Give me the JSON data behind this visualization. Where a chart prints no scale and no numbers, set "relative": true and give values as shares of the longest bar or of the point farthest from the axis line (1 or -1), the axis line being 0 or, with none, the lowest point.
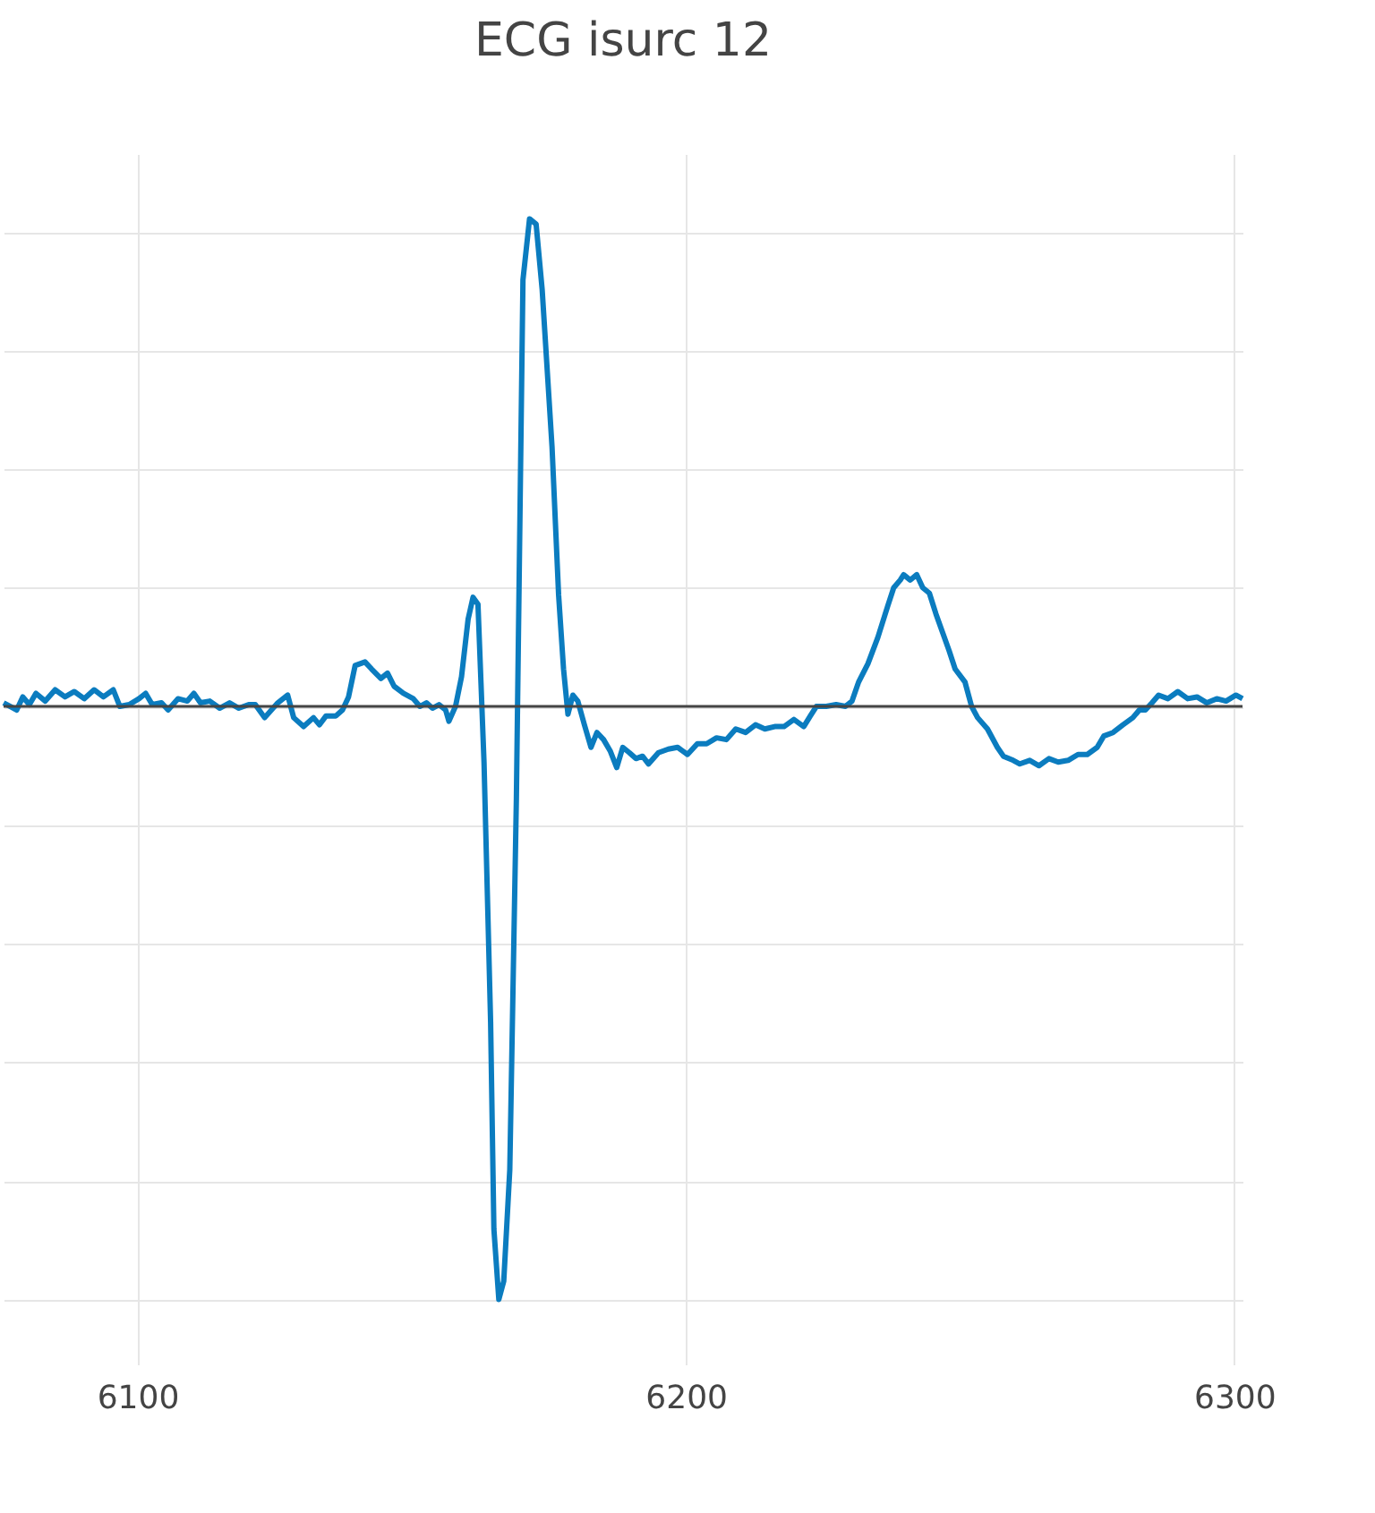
{
  "chart_data": {
    "type": "line",
    "title": "ECG isurc 12",
    "relative": true,
    "grid": true,
    "legend": false,
    "marker": "none",
    "line_style": "solid",
    "xlim": [
      6075.6,
      6301.5
    ],
    "xticks": [
      6100,
      6200,
      6300
    ],
    "series": [
      {
        "color": "#0b7cbf",
        "x": [
          6075.6,
          6078.0,
          6079.1,
          6080.3,
          6081.5,
          6083.2,
          6085.0,
          6086.8,
          6088.5,
          6090.3,
          6092.1,
          6093.8,
          6095.6,
          6096.8,
          6098.5,
          6100.3,
          6101.5,
          6102.7,
          6104.4,
          6105.6,
          6107.4,
          6109.1,
          6110.3,
          6111.5,
          6113.2,
          6115.0,
          6116.8,
          6118.5,
          6120.3,
          6121.5,
          6123.2,
          6125.6,
          6127.4,
          6128.5,
          6130.3,
          6132.1,
          6133.2,
          6134.4,
          6136.2,
          6137.4,
          6138.5,
          6139.7,
          6141.5,
          6142.7,
          6144.4,
          6145.6,
          6146.8,
          6148.5,
          6150.3,
          6151.5,
          6152.7,
          6153.8,
          6155.0,
          6156.2,
          6156.8,
          6158.0,
          6159.1,
          6160.3,
          6161.2,
          6162.1,
          6163.2,
          6164.4,
          6165.0,
          6165.9,
          6166.8,
          6167.9,
          6169.1,
          6170.3,
          6171.5,
          6172.7,
          6173.8,
          6175.6,
          6176.8,
          6177.7,
          6178.5,
          6179.4,
          6180.3,
          6181.5,
          6182.7,
          6183.8,
          6185.0,
          6186.2,
          6187.4,
          6188.5,
          6189.7,
          6190.9,
          6192.1,
          6193.2,
          6195.0,
          6196.8,
          6198.5,
          6200.3,
          6202.1,
          6203.8,
          6205.6,
          6207.4,
          6209.1,
          6210.9,
          6212.7,
          6214.4,
          6216.2,
          6217.9,
          6219.7,
          6221.5,
          6222.7,
          6223.8,
          6225.6,
          6227.4,
          6229.1,
          6230.3,
          6231.5,
          6233.2,
          6235.0,
          6236.8,
          6237.9,
          6239.1,
          6239.7,
          6240.9,
          6242.1,
          6243.2,
          6244.4,
          6245.6,
          6246.8,
          6248.0,
          6249.1,
          6250.9,
          6252.1,
          6253.2,
          6255.0,
          6256.8,
          6257.9,
          6259.7,
          6260.9,
          6262.7,
          6264.4,
          6266.2,
          6267.9,
          6269.7,
          6271.5,
          6273.2,
          6275.0,
          6276.2,
          6277.9,
          6279.7,
          6281.5,
          6282.7,
          6283.8,
          6285.0,
          6286.2,
          6287.9,
          6289.7,
          6291.5,
          6293.2,
          6295.0,
          6296.8,
          6298.5,
          6300.3,
          6301.5
        ],
        "values": [
          0.006,
          -0.006,
          0.016,
          0.003,
          0.022,
          0.009,
          0.028,
          0.016,
          0.025,
          0.013,
          0.028,
          0.016,
          0.028,
          0.0,
          0.003,
          0.013,
          0.022,
          0.003,
          0.006,
          -0.006,
          0.013,
          0.009,
          0.022,
          0.006,
          0.009,
          -0.003,
          0.006,
          -0.003,
          0.003,
          0.003,
          -0.019,
          0.006,
          0.019,
          -0.019,
          -0.034,
          -0.019,
          -0.031,
          -0.016,
          -0.016,
          -0.006,
          0.016,
          0.069,
          0.075,
          0.063,
          0.047,
          0.056,
          0.034,
          0.022,
          0.013,
          0.0,
          0.006,
          -0.003,
          0.003,
          -0.006,
          -0.025,
          0.0,
          0.05,
          0.147,
          0.184,
          0.172,
          -0.094,
          -0.531,
          -0.881,
          -1.0,
          -0.969,
          -0.781,
          -0.156,
          0.719,
          0.822,
          0.813,
          0.703,
          0.438,
          0.188,
          0.063,
          -0.013,
          0.019,
          0.009,
          -0.031,
          -0.069,
          -0.044,
          -0.056,
          -0.075,
          -0.103,
          -0.069,
          -0.078,
          -0.088,
          -0.084,
          -0.097,
          -0.078,
          -0.072,
          -0.069,
          -0.081,
          -0.063,
          -0.063,
          -0.053,
          -0.056,
          -0.038,
          -0.044,
          -0.031,
          -0.038,
          -0.034,
          -0.034,
          -0.022,
          -0.034,
          -0.016,
          0.0,
          0.0,
          0.003,
          0.0,
          0.009,
          0.041,
          0.072,
          0.116,
          0.169,
          0.2,
          0.213,
          0.222,
          0.213,
          0.222,
          0.2,
          0.191,
          0.156,
          0.125,
          0.094,
          0.063,
          0.041,
          0.0,
          -0.019,
          -0.038,
          -0.069,
          -0.084,
          -0.091,
          -0.097,
          -0.091,
          -0.1,
          -0.088,
          -0.094,
          -0.091,
          -0.081,
          -0.081,
          -0.069,
          -0.05,
          -0.044,
          -0.031,
          -0.019,
          -0.006,
          -0.006,
          0.006,
          0.019,
          0.013,
          0.025,
          0.013,
          0.016,
          0.006,
          0.013,
          0.009,
          0.019,
          0.013
        ]
      }
    ]
  }
}
